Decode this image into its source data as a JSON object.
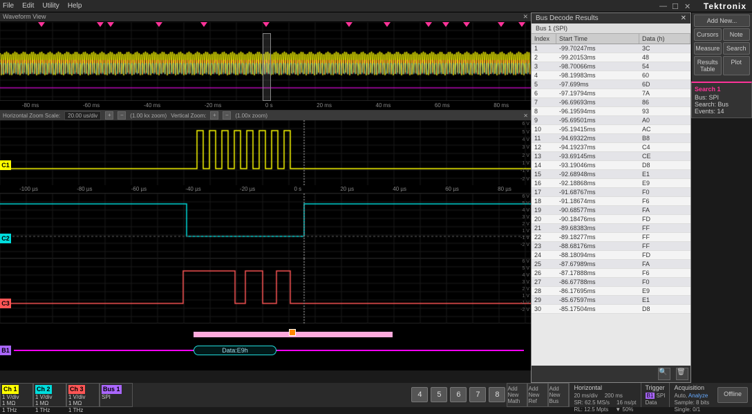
{
  "menu": {
    "file": "File",
    "edit": "Edit",
    "utility": "Utility",
    "help": "Help"
  },
  "logo": "Tektronix",
  "wf_view_label": "Waveform View",
  "right_buttons": {
    "add_new": "Add New...",
    "cursors": "Cursors",
    "note": "Note",
    "measure": "Measure",
    "search": "Search",
    "results": "Results Table",
    "plot": "Plot"
  },
  "search": {
    "title": "Search 1",
    "bus": "Bus: SPI",
    "type": "Search: Bus",
    "events": "Events: 14"
  },
  "overview_times": [
    "-80 ms",
    "-60 ms",
    "-40 ms",
    "-20 ms",
    "0 s",
    "20 ms",
    "40 ms",
    "60 ms",
    "80 ms"
  ],
  "zoom": {
    "label": "Horizontal Zoom Scale:",
    "val": "20.00 us/div",
    "zoom1": "(1.00 kx zoom)",
    "vert": "Vertical Zoom:",
    "zoom2": "(1.00x zoom)"
  },
  "scope_times": [
    "-100 µs",
    "-80 µs",
    "-60 µs",
    "-40 µs",
    "-20 µs",
    "0 s",
    "20 µs",
    "40 µs",
    "60 µs",
    "80 µs"
  ],
  "volt_labels": [
    "6 V",
    "5 V",
    "4 V",
    "3 V",
    "2 V",
    "1 V",
    "-1 V",
    "-2 V"
  ],
  "bus_data": "Data:E9h",
  "channels": {
    "ch1": {
      "name": "Ch 1",
      "color": "#ffff00",
      "vdiv": "1 V/div",
      "imp": "1 MΩ",
      "bw": "1 THz"
    },
    "ch2": {
      "name": "Ch 2",
      "color": "#00dddd",
      "vdiv": "1 V/div",
      "imp": "1 MΩ",
      "bw": "1 THz"
    },
    "ch3": {
      "name": "Ch 3",
      "color": "#ff5555",
      "vdiv": "1 V/div",
      "imp": "1 MΩ",
      "bw": "1 THz"
    },
    "b1": {
      "name": "Bus 1",
      "color": "#aa66ff",
      "proto": "SPI"
    }
  },
  "bottom_nums": [
    "4",
    "5",
    "6",
    "7",
    "8"
  ],
  "add_btns": {
    "math": "Add New Math",
    "ref": "Add New Ref",
    "bus": "Add New Bus"
  },
  "horiz": {
    "title": "Horizontal",
    "l1": "20 ms/div",
    "l2": "SR: 62.5 MS/s",
    "l3": "RL: 12.5 Mpts",
    "r1": "200 ms",
    "r2": "16 ns/pt",
    "r3": "▼ 50%"
  },
  "trigger": {
    "title": "Trigger",
    "src": "B1",
    "proto": "SPI",
    "on": "Data"
  },
  "acq": {
    "title": "Acquisition",
    "mode": "Auto,",
    "analyze": "Analyze",
    "sample": "Sample: 8 bits",
    "single": "Single: 0/1"
  },
  "offline": "Offline",
  "decode": {
    "title": "Bus Decode Results",
    "sub": "Bus 1 (SPI)",
    "cols": {
      "idx": "Index",
      "time": "Start Time",
      "data": "Data (h)"
    },
    "rows": [
      {
        "i": "1",
        "t": "-99.70247ms",
        "d": "3C"
      },
      {
        "i": "2",
        "t": "-99.20153ms",
        "d": "48"
      },
      {
        "i": "3",
        "t": "-98.70066ms",
        "d": "54"
      },
      {
        "i": "4",
        "t": "-98.19983ms",
        "d": "60"
      },
      {
        "i": "5",
        "t": "-97.699ms",
        "d": "6D"
      },
      {
        "i": "6",
        "t": "-97.19794ms",
        "d": "7A"
      },
      {
        "i": "7",
        "t": "-96.69693ms",
        "d": "86"
      },
      {
        "i": "8",
        "t": "-96.19594ms",
        "d": "93"
      },
      {
        "i": "9",
        "t": "-95.69501ms",
        "d": "A0"
      },
      {
        "i": "10",
        "t": "-95.19415ms",
        "d": "AC"
      },
      {
        "i": "11",
        "t": "-94.69322ms",
        "d": "B8"
      },
      {
        "i": "12",
        "t": "-94.19237ms",
        "d": "C4"
      },
      {
        "i": "13",
        "t": "-93.69145ms",
        "d": "CE"
      },
      {
        "i": "14",
        "t": "-93.19046ms",
        "d": "D8"
      },
      {
        "i": "15",
        "t": "-92.68948ms",
        "d": "E1"
      },
      {
        "i": "16",
        "t": "-92.18868ms",
        "d": "E9"
      },
      {
        "i": "17",
        "t": "-91.68767ms",
        "d": "F0"
      },
      {
        "i": "18",
        "t": "-91.18674ms",
        "d": "F6"
      },
      {
        "i": "19",
        "t": "-90.68577ms",
        "d": "FA"
      },
      {
        "i": "20",
        "t": "-90.18476ms",
        "d": "FD"
      },
      {
        "i": "21",
        "t": "-89.68383ms",
        "d": "FF"
      },
      {
        "i": "22",
        "t": "-89.18277ms",
        "d": "FF"
      },
      {
        "i": "23",
        "t": "-88.68176ms",
        "d": "FF"
      },
      {
        "i": "24",
        "t": "-88.18094ms",
        "d": "FD"
      },
      {
        "i": "25",
        "t": "-87.67989ms",
        "d": "FA"
      },
      {
        "i": "26",
        "t": "-87.17888ms",
        "d": "F6"
      },
      {
        "i": "27",
        "t": "-86.67788ms",
        "d": "F0"
      },
      {
        "i": "28",
        "t": "-86.17695ms",
        "d": "E9"
      },
      {
        "i": "29",
        "t": "-85.67597ms",
        "d": "E1"
      },
      {
        "i": "30",
        "t": "-85.17504ms",
        "d": "D8"
      }
    ]
  },
  "colors": {
    "ch1": "#ffff00",
    "ch2": "#00dddd",
    "ch3": "#ff5555",
    "bus": "#ff00ff",
    "pink": "#ff3399",
    "grid": "#1a1a1a"
  }
}
